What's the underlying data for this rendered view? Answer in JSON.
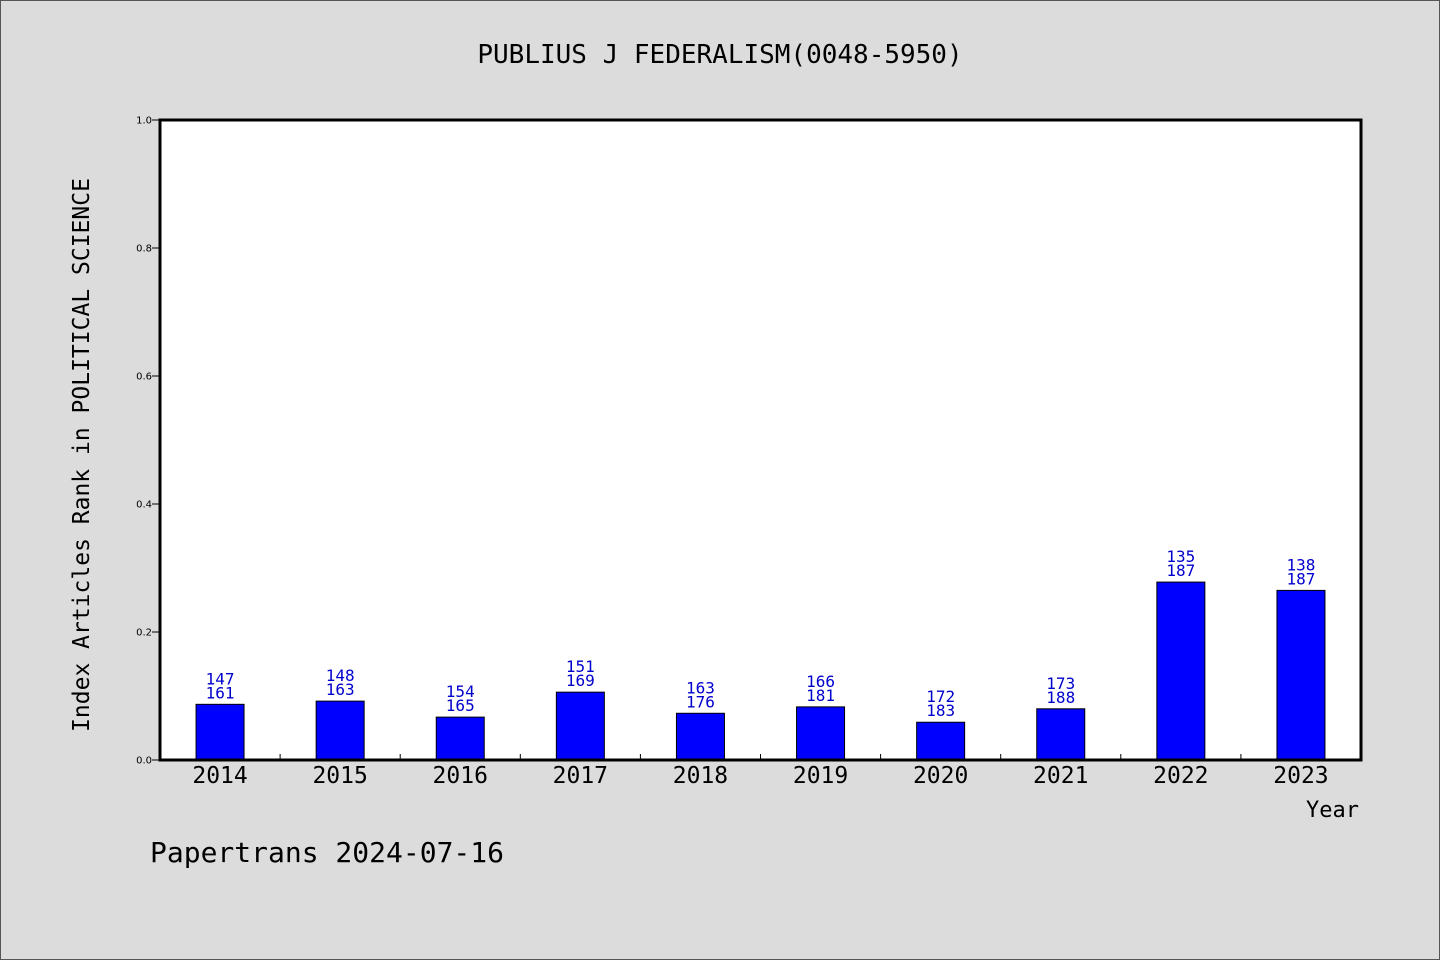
{
  "chart_data": {
    "type": "bar",
    "title": "PUBLIUS J FEDERALISM(0048-5950)",
    "xlabel": "Year",
    "ylabel": "Index Articles Rank in POLITICAL SCIENCE",
    "ylim": [
      0,
      1.0
    ],
    "yticks": [
      "0.0",
      "0.2",
      "0.4",
      "0.6",
      "0.8",
      "1.0"
    ],
    "grid": false,
    "bar_color": "#0000ff",
    "label_color": "#0000cc",
    "categories": [
      "2014",
      "2015",
      "2016",
      "2017",
      "2018",
      "2019",
      "2020",
      "2021",
      "2022",
      "2023"
    ],
    "values": [
      0.087,
      0.092,
      0.067,
      0.106,
      0.073,
      0.083,
      0.059,
      0.08,
      0.278,
      0.265
    ],
    "rank_labels": [
      "147",
      "148",
      "154",
      "151",
      "163",
      "166",
      "172",
      "173",
      "135",
      "138"
    ],
    "total_labels": [
      "161",
      "163",
      "165",
      "169",
      "176",
      "181",
      "183",
      "188",
      "187",
      "187"
    ]
  },
  "footer": {
    "credit": "Papertrans 2024-07-16"
  }
}
